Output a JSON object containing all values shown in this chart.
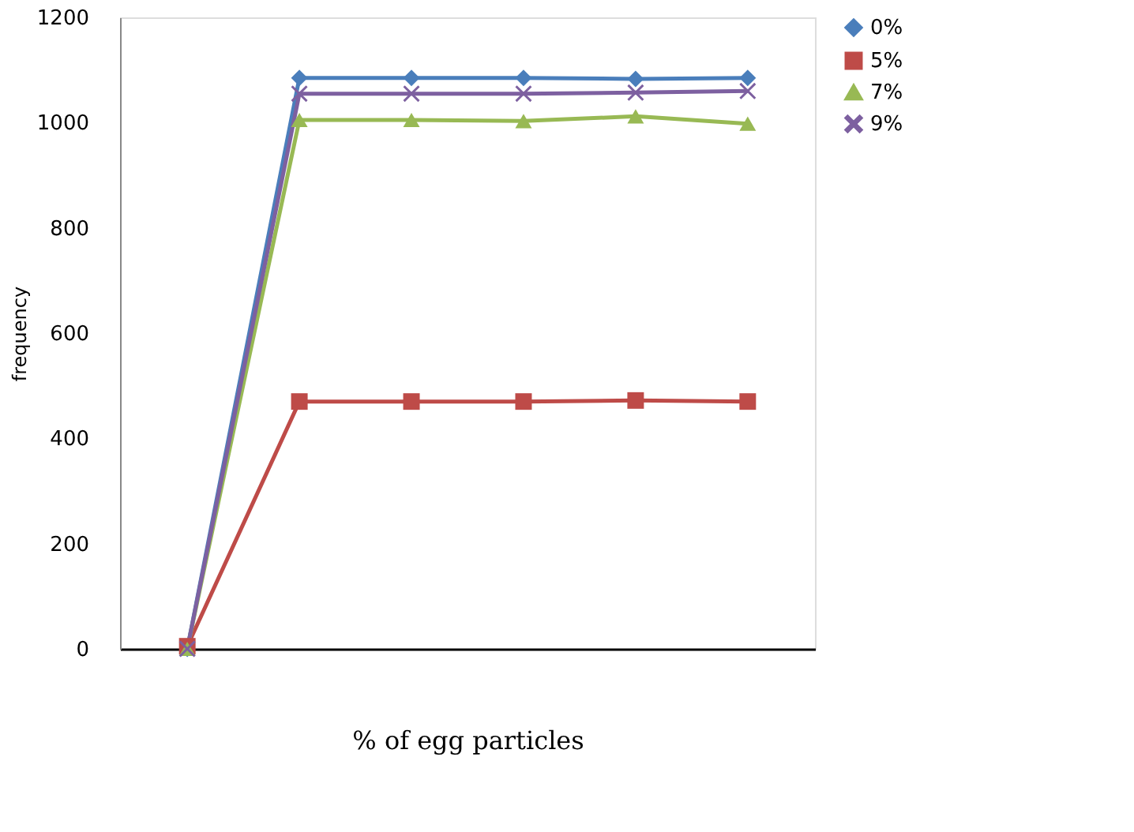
{
  "chart_data": {
    "type": "line",
    "xlabel": "% of egg particles",
    "ylabel": "frequency",
    "categories": [
      null,
      null,
      null,
      null,
      null,
      null
    ],
    "series": [
      {
        "name": "0%",
        "color": "#4a7ebb",
        "marker": "diamond",
        "values": [
          0,
          1085,
          1085,
          1085,
          1083,
          1085
        ]
      },
      {
        "name": "5%",
        "color": "#be4b48",
        "marker": "square",
        "values": [
          5,
          470,
          470,
          470,
          472,
          470
        ]
      },
      {
        "name": "7%",
        "color": "#98b954",
        "marker": "triangle",
        "values": [
          0,
          1005,
          1005,
          1003,
          1012,
          998
        ]
      },
      {
        "name": "9%",
        "color": "#7d60a0",
        "marker": "cross",
        "values": [
          0,
          1055,
          1055,
          1055,
          1057,
          1060
        ]
      }
    ],
    "ylim": [
      0,
      1200
    ],
    "yticks": [
      0,
      200,
      400,
      600,
      800,
      1000,
      1200
    ],
    "grid": false,
    "legend": "right",
    "line_style": "solid"
  }
}
